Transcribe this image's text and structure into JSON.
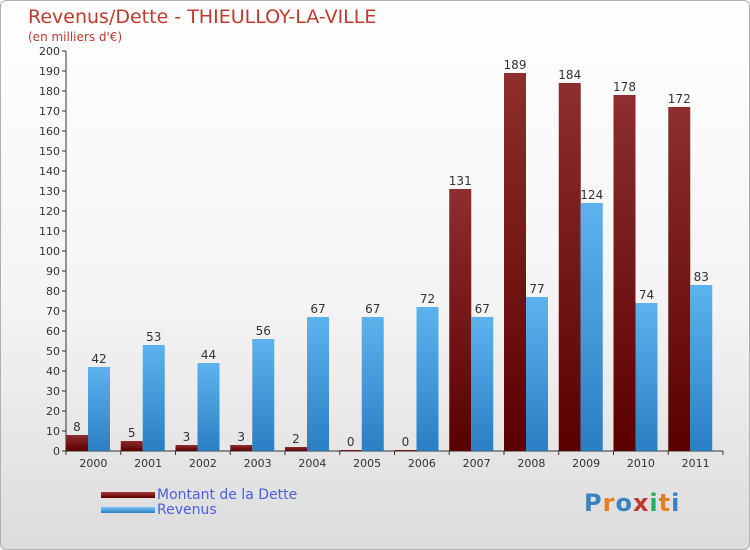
{
  "chart_data": {
    "type": "bar",
    "title": "Revenus/Dette - THIEULLOY-LA-VILLE",
    "subtitle": "(en milliers d'€)",
    "categories": [
      "2000",
      "2001",
      "2002",
      "2003",
      "2004",
      "2005",
      "2006",
      "2007",
      "2008",
      "2009",
      "2010",
      "2011"
    ],
    "series": [
      {
        "name": "Montant de la Dette",
        "color": "#7a1010",
        "values": [
          8,
          5,
          3,
          3,
          2,
          0,
          0,
          131,
          189,
          184,
          178,
          172
        ]
      },
      {
        "name": "Revenus",
        "color": "#4ba3e6",
        "values": [
          42,
          53,
          44,
          56,
          67,
          67,
          72,
          67,
          77,
          124,
          74,
          83
        ]
      }
    ],
    "ylim": [
      0,
      200
    ],
    "ytick_step": 10,
    "grid": false,
    "legend_position": "bottom-left"
  },
  "logo": {
    "text": "Proxiti",
    "colors": [
      "#3b82c4",
      "#e67e22",
      "#3b82c4",
      "#c0392b",
      "#27ae60",
      "#e67e22",
      "#3b82c4"
    ]
  }
}
